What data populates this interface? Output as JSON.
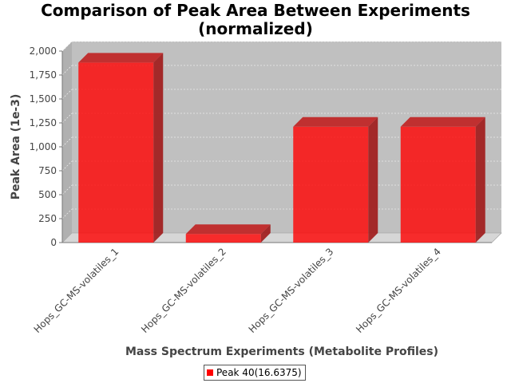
{
  "chart_data": {
    "type": "bar",
    "title": "Comparison of Peak Area Between Experiments",
    "subtitle": "(normalized)",
    "xlabel": "Mass Spectrum Experiments (Metabolite Profiles)",
    "ylabel": "Peak Area (1e-3)",
    "categories": [
      "Hops_GC-MS-volatiles_1",
      "Hops_GC-MS-volatiles_2",
      "Hops_GC-MS-volatiles_3",
      "Hops_GC-MS-volatiles_4"
    ],
    "series": [
      {
        "name": "Peak 40(16.6375)",
        "values": [
          1880,
          90,
          1210,
          1210
        ]
      }
    ],
    "ylim": [
      0,
      2000
    ],
    "yticks": [
      0,
      250,
      500,
      750,
      1000,
      1250,
      1500,
      1750,
      2000
    ],
    "ytick_labels": [
      "0",
      "250",
      "500",
      "750",
      "1,000",
      "1,250",
      "1,500",
      "1,750",
      "2,000"
    ],
    "grid": true,
    "legend_position": "bottom",
    "colors": {
      "bar": "#ff0000",
      "plot_background": "#c0c0c0",
      "grid": "#ffffff"
    }
  }
}
